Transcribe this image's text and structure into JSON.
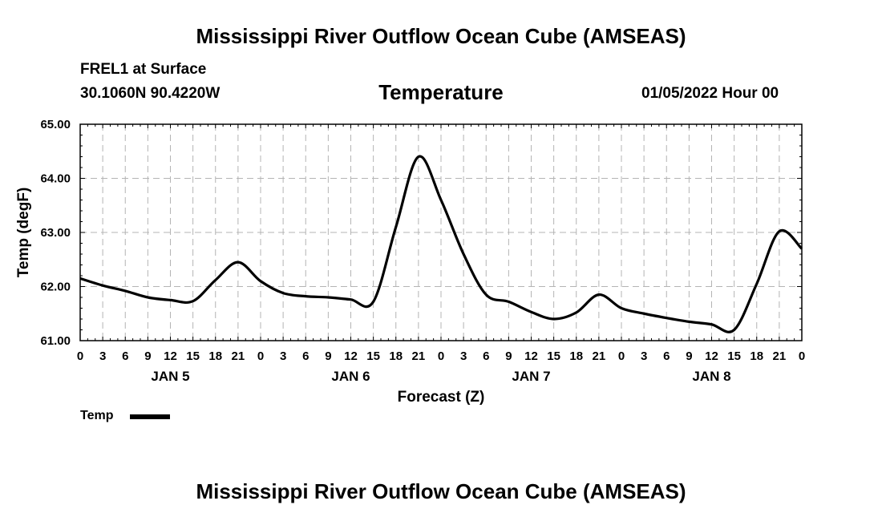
{
  "header": {
    "main_title": "Mississippi River Outflow Ocean Cube (AMSEAS)",
    "station": "FREL1 at Surface",
    "coordinates": "30.1060N  90.4220W",
    "variable": "Temperature",
    "datetime": "01/05/2022 Hour 00"
  },
  "footer": {
    "title": "Mississippi River Outflow Ocean Cube (AMSEAS)"
  },
  "legend": {
    "label": "Temp"
  },
  "chart_data": {
    "type": "line",
    "title": "Temperature",
    "xlabel": "Forecast (Z)",
    "ylabel": "Temp (degF)",
    "xlim": [
      0,
      96
    ],
    "ylim": [
      61.0,
      65.0
    ],
    "grid": true,
    "legend_position": "bottom-left",
    "y_ticks": [
      61.0,
      62.0,
      63.0,
      64.0,
      65.0
    ],
    "y_tick_labels": [
      "61.00",
      "62.00",
      "63.00",
      "64.00",
      "65.00"
    ],
    "x_ticks": [
      0,
      3,
      6,
      9,
      12,
      15,
      18,
      21,
      24,
      27,
      30,
      33,
      36,
      39,
      42,
      45,
      48,
      51,
      54,
      57,
      60,
      63,
      66,
      69,
      72,
      75,
      78,
      81,
      84,
      87,
      90,
      93,
      96
    ],
    "x_tick_labels": [
      "0",
      "3",
      "6",
      "9",
      "12",
      "15",
      "18",
      "21",
      "0",
      "3",
      "6",
      "9",
      "12",
      "15",
      "18",
      "21",
      "0",
      "3",
      "6",
      "9",
      "12",
      "15",
      "18",
      "21",
      "0",
      "3",
      "6",
      "9",
      "12",
      "15",
      "18",
      "21",
      "0"
    ],
    "day_labels": [
      {
        "label": "JAN 5",
        "x": 12
      },
      {
        "label": "JAN 6",
        "x": 36
      },
      {
        "label": "JAN 7",
        "x": 60
      },
      {
        "label": "JAN 8",
        "x": 84
      }
    ],
    "series": [
      {
        "name": "Temp",
        "color": "#000000",
        "x": [
          0,
          3,
          6,
          9,
          12,
          15,
          18,
          21,
          24,
          27,
          30,
          33,
          36,
          39,
          42,
          45,
          48,
          51,
          54,
          57,
          60,
          63,
          66,
          69,
          72,
          75,
          78,
          81,
          84,
          87,
          90,
          93,
          96
        ],
        "values": [
          62.15,
          62.02,
          61.92,
          61.8,
          61.75,
          61.73,
          62.12,
          62.45,
          62.1,
          61.88,
          61.82,
          61.8,
          61.76,
          61.72,
          63.1,
          64.4,
          63.6,
          62.6,
          61.85,
          61.72,
          61.53,
          61.4,
          61.52,
          61.85,
          61.6,
          61.5,
          61.42,
          61.35,
          61.3,
          61.2,
          62.05,
          63.02,
          62.7
        ]
      }
    ]
  }
}
